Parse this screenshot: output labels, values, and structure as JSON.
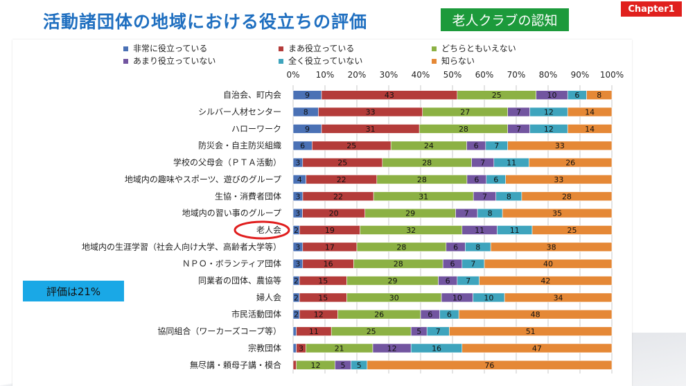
{
  "header": {
    "title": "活動諸団体の地域における役立ちの評価",
    "topic_badge": "老人クラブの認知",
    "chapter": "Chapter1"
  },
  "note": {
    "text": "評価は21%"
  },
  "colors": {
    "series": [
      "#4a71b5",
      "#b43c3a",
      "#8cb144",
      "#7255a0",
      "#3ea4bd",
      "#e58836"
    ],
    "highlight_circle": "#e01e1e"
  },
  "chart_data": {
    "type": "bar",
    "orientation": "horizontal",
    "stacked": true,
    "percent_stacked": true,
    "xlim": [
      0,
      100
    ],
    "x_ticks": [
      "0%",
      "10%",
      "20%",
      "30%",
      "40%",
      "50%",
      "60%",
      "70%",
      "80%",
      "90%",
      "100%"
    ],
    "grid": true,
    "legend_position": "top",
    "highlighted_category": "老人会",
    "categories": [
      "自治会、町内会",
      "シルバー人材センター",
      "ハローワーク",
      "防災会・自主防災組織",
      "学校の父母会（ＰＴＡ活動）",
      "地域内の趣味やスポーツ、遊びのグループ",
      "生協・消費者団体",
      "地域内の習い事のグループ",
      "老人会",
      "地域内の生涯学習（社会人向け大学、高齢者大学等）",
      "ＮＰＯ・ボランティア団体",
      "同業者の団体、農協等",
      "婦人会",
      "市民活動団体",
      "協同組合（ワーカーズコープ等）",
      "宗教団体",
      "無尽講・頼母子講・模合"
    ],
    "series": [
      {
        "name": "非常に役立っている",
        "values": [
          9,
          8,
          9,
          6,
          3,
          4,
          3,
          3,
          2,
          3,
          3,
          2,
          2,
          2,
          1,
          1,
          0
        ]
      },
      {
        "name": "まあ役立っている",
        "values": [
          43,
          33,
          31,
          25,
          25,
          22,
          22,
          20,
          19,
          17,
          16,
          15,
          15,
          12,
          11,
          3,
          1
        ]
      },
      {
        "name": "どちらともいえない",
        "values": [
          25,
          27,
          28,
          24,
          28,
          28,
          31,
          29,
          32,
          28,
          28,
          29,
          30,
          26,
          25,
          21,
          12
        ]
      },
      {
        "name": "あまり役立っていない",
        "values": [
          10,
          7,
          7,
          6,
          7,
          6,
          7,
          7,
          11,
          6,
          6,
          6,
          10,
          6,
          5,
          12,
          5
        ]
      },
      {
        "name": "全く役立っていない",
        "values": [
          6,
          12,
          12,
          7,
          11,
          6,
          8,
          8,
          11,
          8,
          7,
          7,
          10,
          6,
          7,
          16,
          5
        ]
      },
      {
        "name": "知らない",
        "values": [
          8,
          14,
          14,
          33,
          26,
          33,
          28,
          35,
          25,
          38,
          40,
          42,
          34,
          48,
          51,
          47,
          76
        ]
      }
    ]
  }
}
